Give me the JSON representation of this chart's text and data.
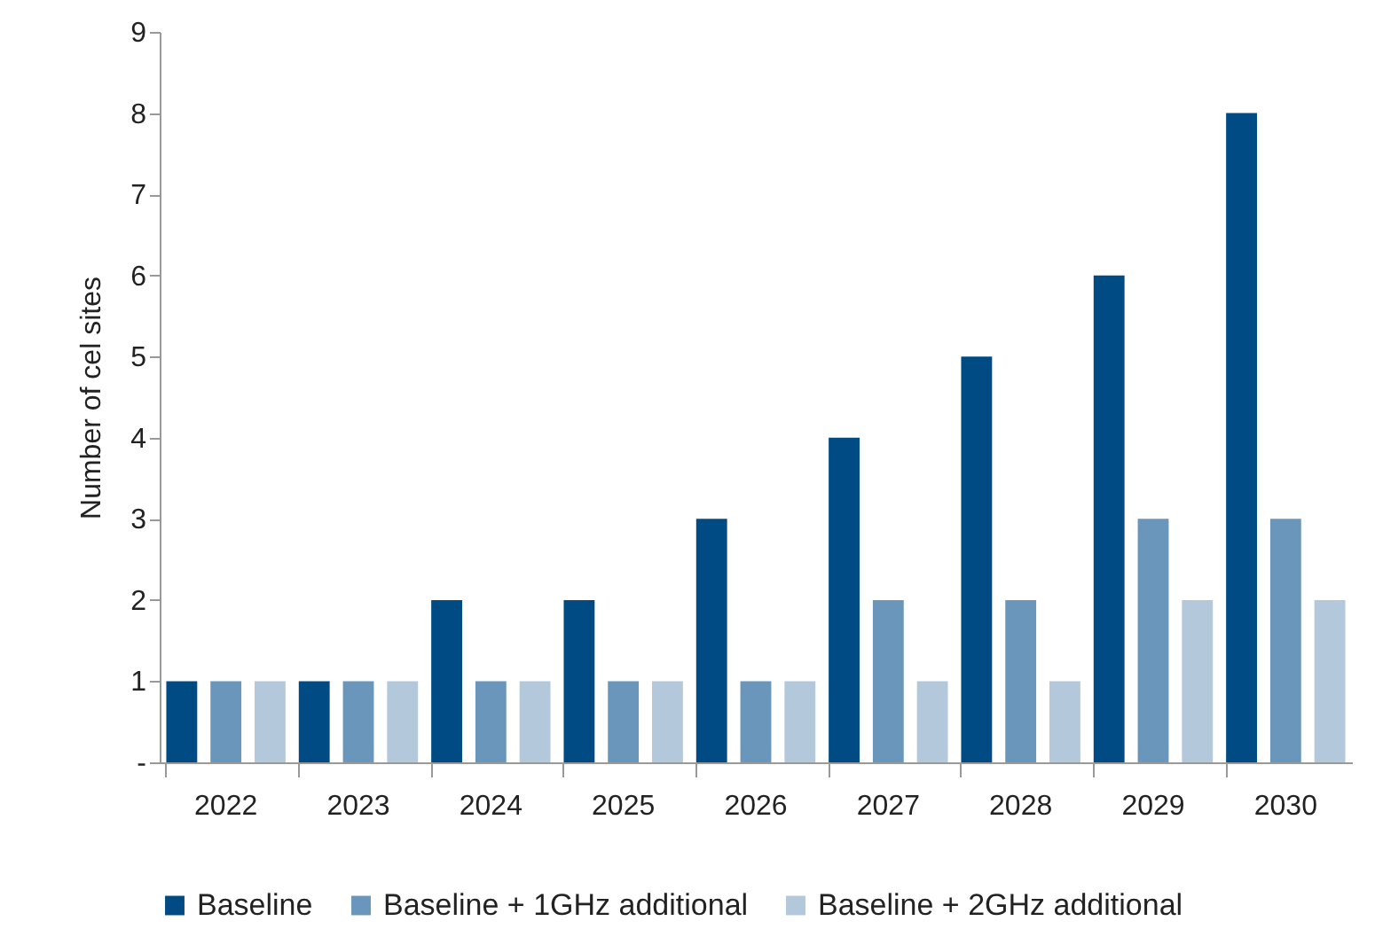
{
  "chart_data": {
    "type": "bar",
    "ylabel": "Number of cel sites",
    "categories": [
      "2022",
      "2023",
      "2024",
      "2025",
      "2026",
      "2027",
      "2028",
      "2029",
      "2030"
    ],
    "series": [
      {
        "name": "Baseline",
        "color": "#004b84",
        "values": [
          1,
          1,
          2,
          2,
          3,
          4,
          5,
          6,
          8
        ]
      },
      {
        "name": "Baseline + 1GHz additional",
        "color": "#6996ba",
        "values": [
          1,
          1,
          1,
          1,
          1,
          2,
          2,
          3,
          3
        ]
      },
      {
        "name": "Baseline + 2GHz additional",
        "color": "#b4c8db",
        "values": [
          1,
          1,
          1,
          1,
          1,
          1,
          1,
          2,
          2
        ]
      }
    ],
    "ylim": [
      0,
      9
    ],
    "yticks": [
      {
        "value": 0,
        "label": "-"
      },
      1,
      2,
      3,
      4,
      5,
      6,
      7,
      8,
      9
    ],
    "legend": "bottom"
  }
}
